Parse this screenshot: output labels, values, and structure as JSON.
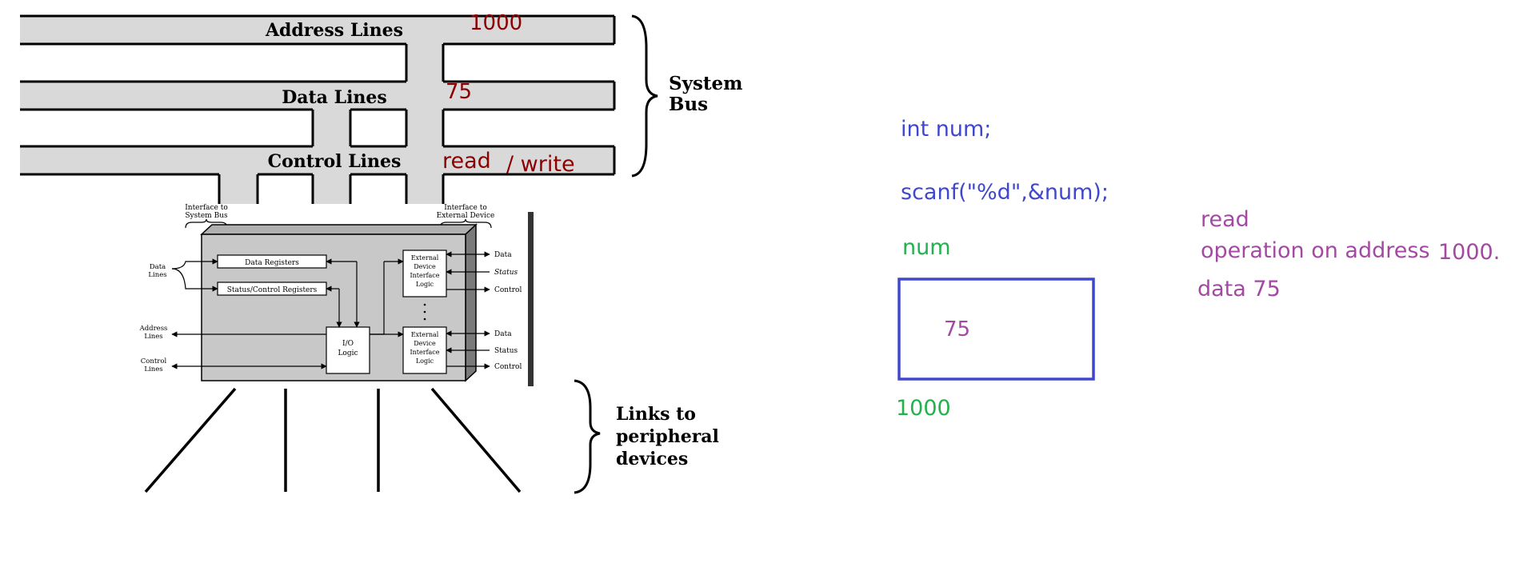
{
  "bus": {
    "address_lines": "Address Lines",
    "data_lines": "Data Lines",
    "control_lines": "Control Lines",
    "system_bus_line1": "System",
    "system_bus_line2": "Bus"
  },
  "module": {
    "interface_system_bus_line1": "Interface to",
    "interface_system_bus_line2": "System Bus",
    "interface_external_line1": "Interface to",
    "interface_external_line2": "External Device",
    "data_registers": "Data Registers",
    "status_control_registers": "Status/Control Registers",
    "io_logic_line1": "I/O",
    "io_logic_line2": "Logic",
    "ext_logic_line1": "External",
    "ext_logic_line2": "Device",
    "ext_logic_line3": "Interface",
    "ext_logic_line4": "Logic",
    "left_data_line1": "Data",
    "left_data_line2": "Lines",
    "left_address_line1": "Address",
    "left_address_line2": "Lines",
    "left_control_line1": "Control",
    "left_control_line2": "Lines",
    "right_data": "Data",
    "right_status": "Status",
    "right_control": "Control"
  },
  "links": {
    "line1": "Links to",
    "line2": "peripheral",
    "line3": "devices"
  },
  "annotations": {
    "address_value": "1000",
    "data_value": "75",
    "read": "read",
    "slash_write": "/ write",
    "code_line1": "int num;",
    "code_line2": "scanf(\"%d\",&num);",
    "var_name": "num",
    "box_value": "75",
    "box_address": "1000",
    "note_read": "read",
    "note_operation": "operation on address",
    "note_address": "1000.",
    "note_data": "data 75"
  },
  "colors": {
    "bus_fill": "#d9d9d9",
    "module_fill": "#c8c8c8",
    "maroon": "#8b0000",
    "code_blue": "#3f48cc",
    "green": "#22b14c",
    "purple": "#a349a4"
  }
}
